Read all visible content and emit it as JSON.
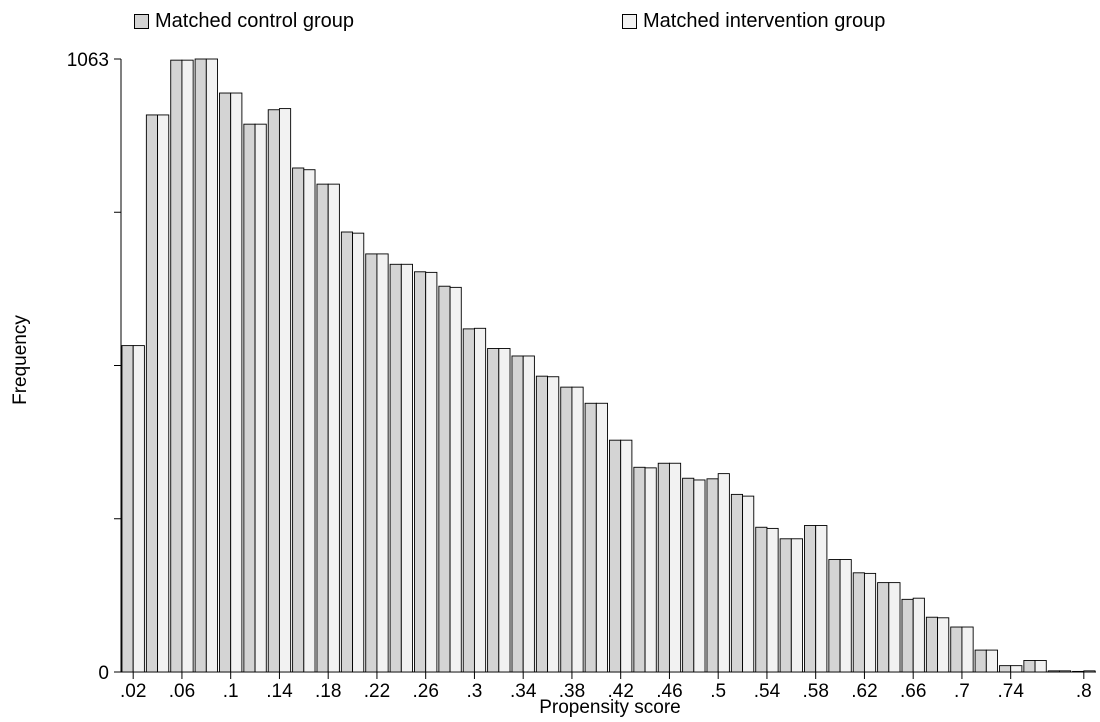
{
  "legend": {
    "control_label": "Matched control group",
    "intervention_label": "Matched intervention group"
  },
  "colors": {
    "control_fill": "#d4d4d4",
    "intervention_fill": "#f2f2f2",
    "stroke": "#000000"
  },
  "chart_data": {
    "type": "bar",
    "xlabel": "Propensity score",
    "ylabel": "Frequency",
    "ylim": [
      0,
      1063
    ],
    "y_ticks": [
      {
        "value": 0,
        "label": "0"
      },
      {
        "value": 265.75,
        "label": ""
      },
      {
        "value": 531.5,
        "label": ""
      },
      {
        "value": 797.25,
        "label": ""
      },
      {
        "value": 1063,
        "label": "1063"
      }
    ],
    "x_tick_labels": [
      ".02",
      ".06",
      ".1",
      ".14",
      ".18",
      ".22",
      ".26",
      ".3",
      ".34",
      ".38",
      ".42",
      ".46",
      ".5",
      ".54",
      ".58",
      ".62",
      ".66",
      ".7",
      ".74",
      ".8"
    ],
    "x_ticks": [
      0.02,
      0.06,
      0.1,
      0.14,
      0.18,
      0.22,
      0.26,
      0.3,
      0.34,
      0.38,
      0.42,
      0.46,
      0.5,
      0.54,
      0.58,
      0.62,
      0.66,
      0.7,
      0.74,
      0.8
    ],
    "x_range": [
      0.01,
      0.81
    ],
    "bin_width": 0.02,
    "categories": [
      0.02,
      0.04,
      0.06,
      0.08,
      0.1,
      0.12,
      0.14,
      0.16,
      0.18,
      0.2,
      0.22,
      0.24,
      0.26,
      0.28,
      0.3,
      0.32,
      0.34,
      0.36,
      0.38,
      0.4,
      0.42,
      0.44,
      0.46,
      0.48,
      0.5,
      0.52,
      0.54,
      0.56,
      0.58,
      0.6,
      0.62,
      0.64,
      0.66,
      0.68,
      0.7,
      0.72,
      0.74,
      0.76,
      0.78,
      0.8
    ],
    "series": [
      {
        "name": "Matched control group",
        "values": [
          566,
          966,
          1061,
          1063,
          1004,
          950,
          975,
          874,
          846,
          763,
          725,
          707,
          694,
          669,
          595,
          561,
          548,
          513,
          494,
          466,
          402,
          355,
          362,
          336,
          335,
          308,
          251,
          231,
          254,
          195,
          172,
          155,
          126,
          95,
          78,
          38,
          11,
          20,
          2,
          0
        ]
      },
      {
        "name": "Matched intervention group",
        "values": [
          566,
          966,
          1061,
          1063,
          1004,
          950,
          977,
          871,
          846,
          761,
          725,
          707,
          693,
          667,
          596,
          561,
          548,
          512,
          494,
          466,
          402,
          354,
          362,
          333,
          344,
          305,
          249,
          231,
          254,
          195,
          171,
          155,
          128,
          94,
          78,
          38,
          11,
          20,
          2,
          2
        ]
      }
    ],
    "legend_position": "top",
    "grid": false
  }
}
